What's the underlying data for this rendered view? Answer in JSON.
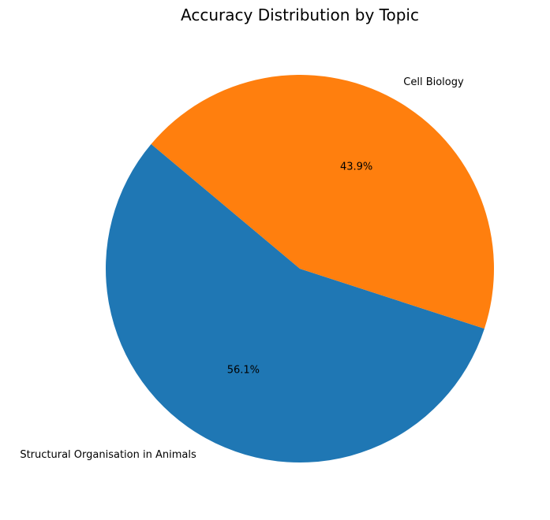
{
  "chart_data": {
    "type": "pie",
    "title": "Accuracy Distribution by Topic",
    "start_angle_deg": 140,
    "direction": "counterclockwise",
    "slices": [
      {
        "label": "Structural Organisation in Animals",
        "value": 56.1,
        "pct_label": "56.1%",
        "color": "#1f77b4"
      },
      {
        "label": "Cell Biology",
        "value": 43.9,
        "pct_label": "43.9%",
        "color": "#ff7f0e"
      }
    ]
  }
}
